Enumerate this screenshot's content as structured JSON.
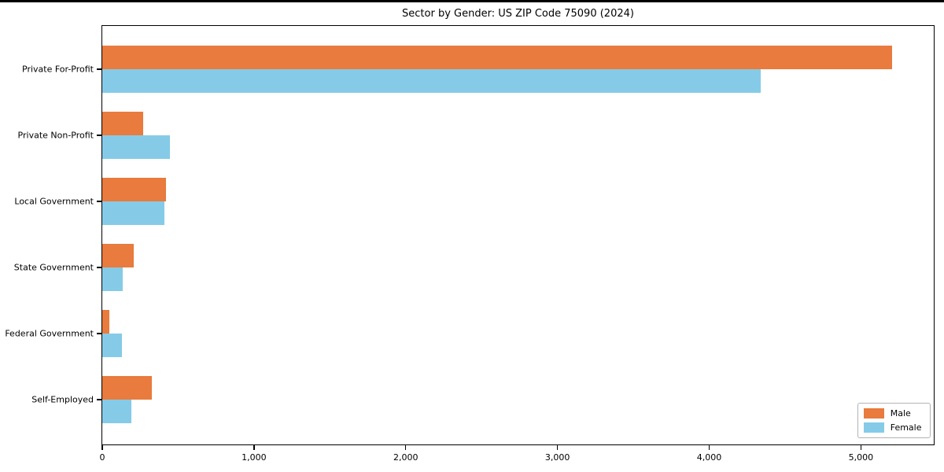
{
  "chart_data": {
    "type": "bar",
    "orientation": "horizontal",
    "title": "Sector by Gender: US ZIP Code 75090 (2024)",
    "categories": [
      "Private For-Profit",
      "Private Non-Profit",
      "Local Government",
      "State Government",
      "Federal Government",
      "Self-Employed"
    ],
    "series": [
      {
        "name": "Male",
        "color": "#e87b3d",
        "values": [
          5210,
          270,
          420,
          210,
          50,
          330
        ]
      },
      {
        "name": "Female",
        "color": "#85cbe8",
        "values": [
          4340,
          450,
          410,
          135,
          130,
          195
        ]
      }
    ],
    "xlabel": "",
    "ylabel": "",
    "xlim": [
      0,
      5480
    ],
    "xticks": {
      "values": [
        0,
        1000,
        2000,
        3000,
        4000,
        5000
      ],
      "labels": [
        "0",
        "1,000",
        "2,000",
        "3,000",
        "4,000",
        "5,000"
      ]
    },
    "legend": {
      "position": "lower right"
    },
    "grid": false,
    "colors": {
      "axis": "#000000",
      "legend_border": "#b3b3b3",
      "male": "#e87b3d",
      "female": "#85cbe8"
    }
  }
}
